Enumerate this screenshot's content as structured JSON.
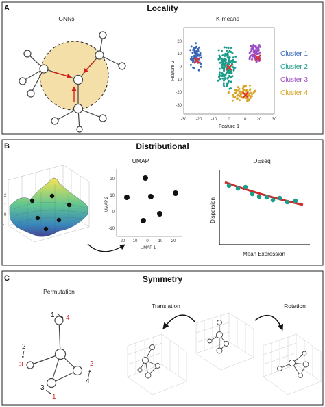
{
  "panels": {
    "a": {
      "letter": "A",
      "title": "Locality",
      "left_title": "GNNs",
      "right_title": "K-means"
    },
    "b": {
      "letter": "B",
      "title": "Distributional",
      "umap_title": "UMAP",
      "deseq_title": "DEseq"
    },
    "c": {
      "letter": "C",
      "title": "Symmetry",
      "perm_title": "Permutation",
      "trans_title": "Translation",
      "rot_title": "Rotation"
    }
  },
  "kmeans": {
    "xlabel": "Feature 1",
    "ylabel": "Feature 2",
    "xticks": [
      "-30",
      "-20",
      "-10",
      "0",
      "10",
      "20",
      "30"
    ],
    "yticks": [
      "20",
      "10",
      "0",
      "-10",
      "-20",
      "-30"
    ],
    "clusters": [
      {
        "name": "Cluster 1",
        "color": "#3a67b8"
      },
      {
        "name": "Cluster 2",
        "color": "#1c9c8a"
      },
      {
        "name": "Cluster 3",
        "color": "#9b4fc4"
      },
      {
        "name": "Cluster 4",
        "color": "#d9a52a"
      }
    ],
    "centroid_color": "#e03030"
  },
  "umap": {
    "xlabel": "UMAP 1",
    "ylabel": "UMAP 2",
    "xticks": [
      "-20",
      "-10",
      "0",
      "10",
      "20"
    ],
    "yticks": [
      "20",
      "10",
      "0",
      "-10"
    ]
  },
  "deseq": {
    "xlabel": "Mean Expression",
    "ylabel": "Dispersion",
    "point_color": "#1c9c8a",
    "fit_color": "#cc2b2b"
  },
  "permutation": {
    "labels": [
      {
        "orig": "1",
        "perm": "4"
      },
      {
        "orig": "2",
        "perm": "3"
      },
      {
        "orig": "3",
        "perm": "1"
      },
      {
        "orig": "4",
        "perm": "2"
      }
    ]
  },
  "colors": {
    "gnn_region": "#f5dfa8",
    "arrow_red": "#d62020",
    "perm_red": "#d62020"
  }
}
